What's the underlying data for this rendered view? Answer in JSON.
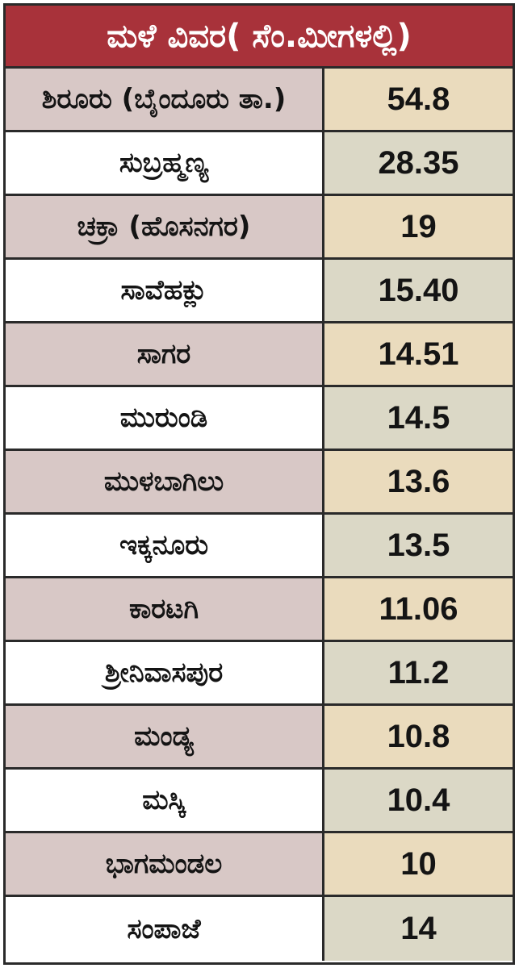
{
  "title": "ಮಳೆ ವಿವರ( ಸೆಂ.ಮೀಗಳಲ್ಲಿ)",
  "colors": {
    "header_bg": "#a8323a",
    "name_shaded": "#d8c8c6",
    "name_plain": "#ffffff",
    "value_shaded": "#eadbbd",
    "value_plain": "#dbd8c6"
  },
  "rows": [
    {
      "name": "ಶಿರೂರು (ಬೈಂದೂರು ತಾ.)",
      "value": "54.8",
      "shaded": true
    },
    {
      "name": "ಸುಬ್ರಹ್ಮಣ್ಯ",
      "value": "28.35",
      "shaded": false
    },
    {
      "name": "ಚಕ್ರಾ (ಹೊಸನಗರ)",
      "value": "19",
      "shaded": true
    },
    {
      "name": "ಸಾವೆಹಕ್ಲು",
      "value": "15.40",
      "shaded": false
    },
    {
      "name": "ಸಾಗರ",
      "value": "14.51",
      "shaded": true
    },
    {
      "name": "ಮುರುಂಡಿ",
      "value": "14.5",
      "shaded": false
    },
    {
      "name": "ಮುಳಬಾಗಿಲು",
      "value": "13.6",
      "shaded": true
    },
    {
      "name": "ಇಕ್ಕನೂರು",
      "value": "13.5",
      "shaded": false
    },
    {
      "name": "ಕಾರಟಗಿ",
      "value": "11.06",
      "shaded": true
    },
    {
      "name": "ಶ್ರೀನಿವಾಸಪುರ",
      "value": "11.2",
      "shaded": false
    },
    {
      "name": "ಮಂಡ್ಯ",
      "value": "10.8",
      "shaded": true
    },
    {
      "name": "ಮಸ್ಕಿ",
      "value": "10.4",
      "shaded": false
    },
    {
      "name": "ಭಾಗಮಂಡಲ",
      "value": "10",
      "shaded": true
    },
    {
      "name": "ಸಂಪಾಜೆ",
      "value": "14",
      "shaded": false
    }
  ]
}
